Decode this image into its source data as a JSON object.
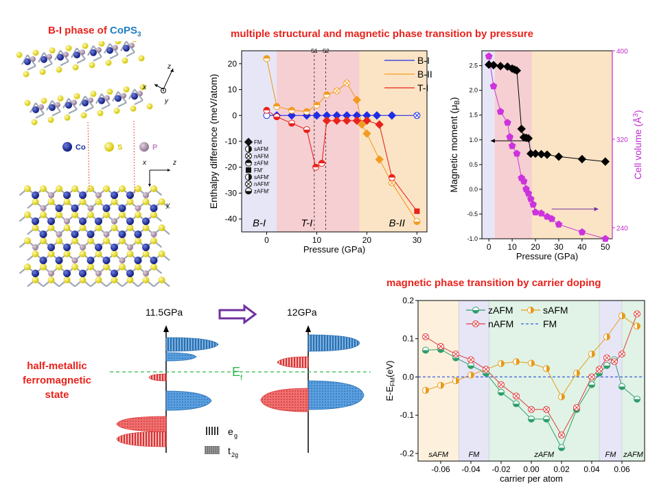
{
  "structure": {
    "title_prefix": "B-I phase of ",
    "title_formula": "CoPS",
    "title_sub": "3",
    "legend": [
      {
        "label": "Co",
        "color": "#1a2a9a"
      },
      {
        "label": "S",
        "color": "#f1e51c"
      },
      {
        "label": "P",
        "color": "#b59bb0"
      }
    ],
    "axes_top": {
      "z": "z",
      "x": "x",
      "y": "y"
    },
    "axes_bottom": {
      "x": "x",
      "z": "z",
      "y": "y"
    }
  },
  "top_title": "multiple structural and magnetic phase transition by pressure",
  "bottom_title": "magnetic phase transition by carrier doping",
  "left_label": [
    "half-metallic",
    "ferromagnetic",
    "state"
  ],
  "dos": {
    "left_label": "11.5GPa",
    "right_label": "12GPa",
    "ef_label": "E",
    "ef_sub": "f",
    "eg_label": "e",
    "eg_sub": "g",
    "t2g_label": "t",
    "t2g_sub": "2g"
  },
  "chart_data": [
    {
      "type": "line",
      "name": "enthalpy",
      "xlabel": "Pressure (GPa)",
      "ylabel": "Enthalpy difference (meV/atom)",
      "xlim": [
        -5,
        32
      ],
      "ylim": [
        -45,
        25
      ],
      "xticks": [
        0,
        10,
        20,
        30
      ],
      "yticks": [
        20,
        10,
        0,
        -10,
        -20,
        -30,
        -40
      ],
      "regions": [
        {
          "label": "B-I",
          "from": -5,
          "to": 2,
          "color": "#e6e6f7"
        },
        {
          "label": "T-I",
          "from": 2,
          "to": 18.5,
          "color": "#f6cfd2"
        },
        {
          "label": "B-II",
          "from": 18.5,
          "to": 32,
          "color": "#fbe4c5"
        }
      ],
      "vlines": [
        {
          "x": 9.5,
          "label": "S1"
        },
        {
          "x": 11.8,
          "label": "S2"
        }
      ],
      "series": [
        {
          "name": "B-I",
          "color": "#1f2de6",
          "x": [
            0,
            2,
            5,
            8,
            10,
            12,
            14,
            16,
            18,
            20,
            22,
            25,
            30
          ],
          "y": [
            0,
            0,
            0,
            0,
            0,
            0,
            0,
            0,
            0,
            0,
            0,
            0,
            0
          ]
        },
        {
          "name": "B-II",
          "color": "#f29b21",
          "x": [
            0,
            2,
            5,
            8,
            10,
            12,
            14,
            16,
            18,
            19,
            20,
            22.5,
            25,
            30
          ],
          "y": [
            22,
            3.5,
            2,
            1.5,
            4,
            8,
            9.5,
            12.5,
            6,
            -3.5,
            -7,
            -17,
            -26,
            -41
          ]
        },
        {
          "name": "T-I",
          "color": "#e8221c",
          "x": [
            0,
            2,
            5,
            8,
            9.8,
            11,
            12,
            14,
            16,
            18,
            20,
            22.5,
            25,
            30
          ],
          "y": [
            2,
            -0.5,
            -3,
            -5.5,
            -20,
            -18.5,
            -2,
            -2,
            -2,
            -2,
            -2,
            -3.5,
            -24,
            -37
          ]
        }
      ],
      "marker_legend": [
        "FM",
        "sAFM",
        "nAFM",
        "zAFM",
        "FM'",
        "sAFM'",
        "nAFM'",
        "zAFM'"
      ]
    },
    {
      "type": "line",
      "name": "magnetic_moment_and_volume",
      "xlabel": "Pressure (GPa)",
      "ylabel_left": "Magnetic moment (μ",
      "ylabel_left_sub": "B",
      "ylabel_left_end": ")",
      "ylabel_right": "Cell volume (Å",
      "ylabel_right_sup": "3",
      "ylabel_right_end": ")",
      "xlim": [
        -3,
        53
      ],
      "ylim_left": [
        -1,
        2.8
      ],
      "ylim_right": [
        230,
        400
      ],
      "xticks": [
        0,
        10,
        20,
        30,
        40,
        50
      ],
      "yticks_left": [
        2.5,
        2.0,
        1.5,
        1.0,
        0.5,
        0.0,
        -0.5,
        -1.0
      ],
      "yticks_right": [
        400,
        320,
        240
      ],
      "regions": [
        {
          "from": -3,
          "to": 2.5,
          "color": "#e6e6f7"
        },
        {
          "from": 2.5,
          "to": 18.5,
          "color": "#f6cfd2"
        },
        {
          "from": 18.5,
          "to": 53,
          "color": "#fbe4c5"
        }
      ],
      "series": [
        {
          "name": "Magnetic moment",
          "color": "#000000",
          "x": [
            0,
            2,
            5,
            8,
            10,
            11,
            12,
            14,
            15,
            16,
            17,
            18,
            20,
            22.5,
            25,
            30,
            40,
            50
          ],
          "y": [
            2.52,
            2.51,
            2.49,
            2.48,
            2.44,
            2.42,
            2.4,
            1.22,
            1.05,
            1.04,
            1.03,
            0.72,
            0.72,
            0.71,
            0.7,
            0.66,
            0.61,
            0.56
          ]
        },
        {
          "name": "Cell volume",
          "color": "#cc33dd",
          "axis": "right",
          "x": [
            0,
            2,
            5,
            8,
            9,
            10,
            12,
            14,
            15,
            16,
            17,
            18,
            19,
            20,
            22.5,
            25,
            27,
            30,
            40,
            50
          ],
          "y": [
            395,
            368,
            345,
            335,
            322,
            314,
            307,
            285,
            282,
            275,
            271,
            266,
            261,
            254,
            253,
            250,
            248,
            243,
            236,
            230
          ]
        }
      ]
    },
    {
      "type": "line",
      "name": "carrier_doping",
      "xlabel": "carrier per atom",
      "ylabel": "E-E",
      "ylabel_sub": "FM",
      "ylabel_end": "(eV)",
      "xlim": [
        -0.075,
        0.075
      ],
      "ylim": [
        -0.22,
        0.2
      ],
      "xticks": [
        -0.06,
        -0.04,
        -0.02,
        0.0,
        0.02,
        0.04,
        0.06
      ],
      "xtick_labels": [
        "-0.06",
        "-0.04",
        "-0.02",
        "0.00",
        "0.02",
        "0.04",
        "0.06"
      ],
      "yticks": [
        0.2,
        0.1,
        0.0,
        -0.1,
        -0.2
      ],
      "ytick_labels": [
        "0.2",
        "0.1",
        "0.0",
        "-0.1",
        "-0.2"
      ],
      "regions": [
        {
          "label": "sAFM",
          "from": -0.075,
          "to": -0.048,
          "color": "#fdf1de"
        },
        {
          "label": "FM",
          "from": -0.048,
          "to": -0.028,
          "color": "#e6e6f7"
        },
        {
          "label": "zAFM",
          "from": -0.028,
          "to": 0.045,
          "color": "#e0f3e6"
        },
        {
          "label": "FM",
          "from": 0.045,
          "to": 0.06,
          "color": "#e6e6f7"
        },
        {
          "label": "zAFM",
          "from": 0.06,
          "to": 0.075,
          "color": "#e0f3e6"
        }
      ],
      "series": [
        {
          "name": "zAFM",
          "color": "#2e9e6a",
          "x": [
            -0.07,
            -0.06,
            -0.05,
            -0.04,
            -0.03,
            -0.02,
            -0.01,
            0.0,
            0.01,
            0.02,
            0.03,
            0.04,
            0.045,
            0.05,
            0.055,
            0.06,
            0.07
          ],
          "y": [
            0.07,
            0.072,
            0.05,
            0.03,
            0.01,
            -0.04,
            -0.07,
            -0.11,
            -0.11,
            -0.185,
            -0.085,
            -0.02,
            0.01,
            0.03,
            0.045,
            -0.025,
            -0.058
          ]
        },
        {
          "name": "sAFM",
          "color": "#e89a1a",
          "x": [
            -0.07,
            -0.06,
            -0.05,
            -0.04,
            -0.03,
            -0.02,
            -0.01,
            0.0,
            0.01,
            0.02,
            0.03,
            0.04,
            0.05,
            0.06,
            0.07
          ],
          "y": [
            -0.035,
            -0.022,
            -0.01,
            0.005,
            0.02,
            0.035,
            0.04,
            0.036,
            0.022,
            -0.052,
            0.01,
            0.06,
            0.105,
            0.16,
            0.133
          ]
        },
        {
          "name": "nAFM",
          "color": "#e23a3a",
          "x": [
            -0.07,
            -0.06,
            -0.05,
            -0.04,
            -0.03,
            -0.02,
            -0.01,
            0.0,
            0.01,
            0.02,
            0.03,
            0.04,
            0.045,
            0.05,
            0.055,
            0.06,
            0.07
          ],
          "y": [
            0.105,
            0.08,
            0.06,
            0.045,
            0.02,
            -0.02,
            -0.05,
            -0.085,
            -0.085,
            -0.152,
            -0.08,
            0.0,
            0.02,
            0.05,
            0.04,
            0.06,
            0.165
          ]
        },
        {
          "name": "FM",
          "color": "#3b5bd6",
          "dashed": true,
          "x": [
            -0.075,
            0.075
          ],
          "y": [
            0,
            0
          ]
        }
      ]
    }
  ]
}
